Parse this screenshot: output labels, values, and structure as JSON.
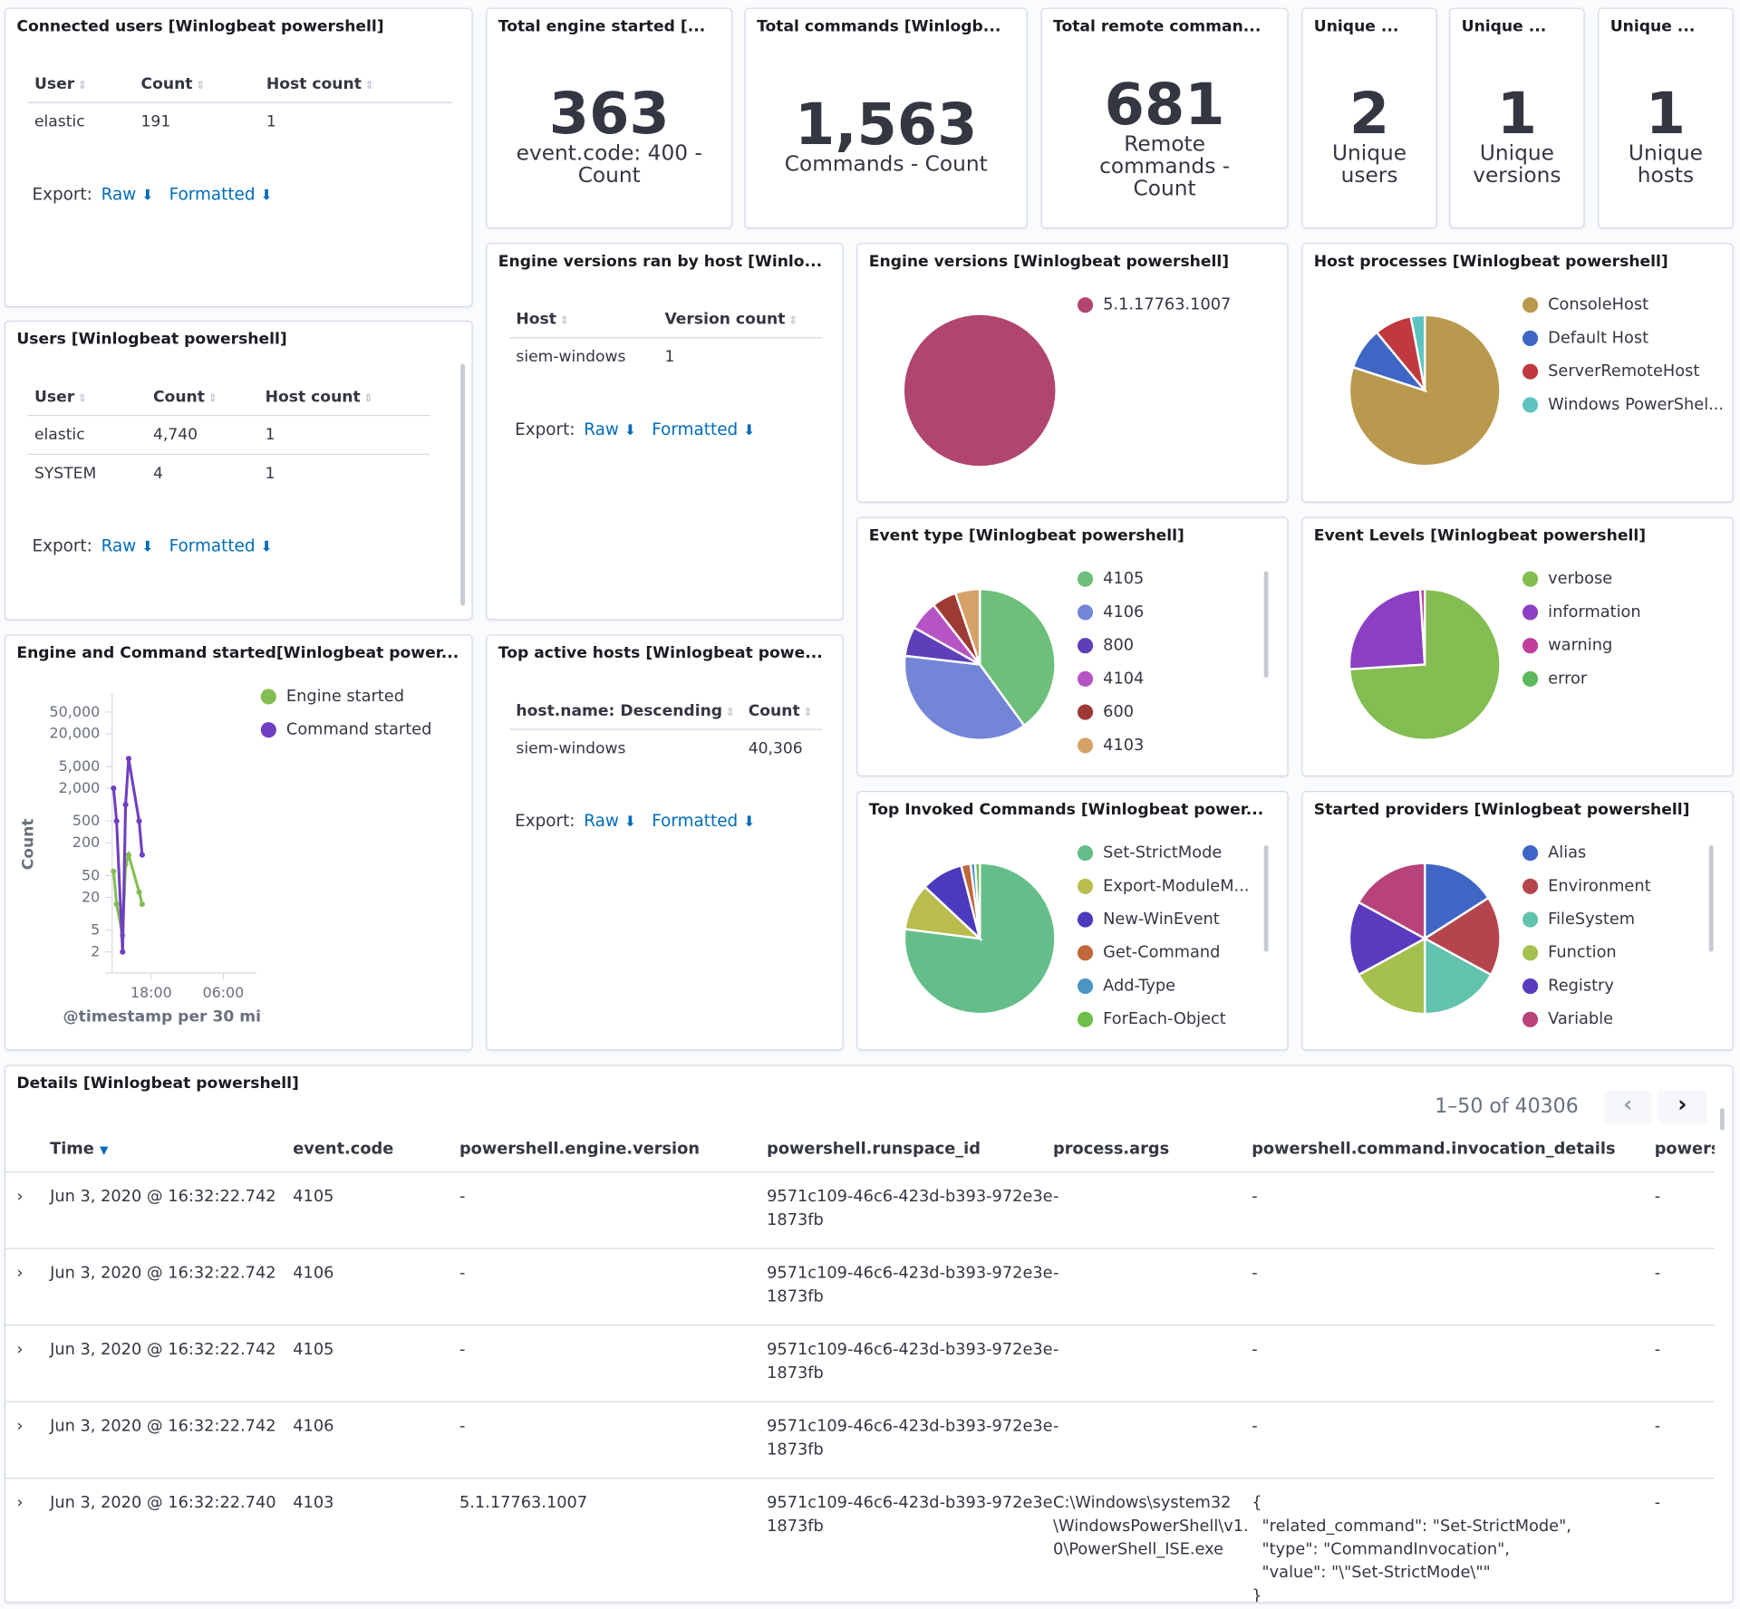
{
  "connected_users": {
    "title": "Connected users [Winlogbeat powershell]",
    "headers": [
      "User",
      "Count",
      "Host count"
    ],
    "rows": [
      [
        "elastic",
        "191",
        "1"
      ]
    ]
  },
  "export": {
    "label": "Export:",
    "raw": "Raw",
    "formatted": "Formatted"
  },
  "metrics": [
    {
      "title": "Total engine started [...",
      "value": "363",
      "label": "event.code: 400 - Count"
    },
    {
      "title": "Total commands [Winlogb...",
      "value": "1,563",
      "label": "Commands - Count"
    },
    {
      "title": "Total remote comman...",
      "value": "681",
      "label": "Remote commands - Count"
    },
    {
      "title": "Unique ...",
      "value": "2",
      "label": "Unique users"
    },
    {
      "title": "Unique ...",
      "value": "1",
      "label": "Unique versions"
    },
    {
      "title": "Unique ...",
      "value": "1",
      "label": "Unique hosts"
    }
  ],
  "users": {
    "title": "Users [Winlogbeat powershell]",
    "headers": [
      "User",
      "Count",
      "Host count"
    ],
    "rows": [
      [
        "elastic",
        "4,740",
        "1"
      ],
      [
        "SYSTEM",
        "4",
        "1"
      ]
    ]
  },
  "engine_by_host": {
    "title": "Engine versions ran by host [Winlo...",
    "headers": [
      "Host",
      "Version count"
    ],
    "rows": [
      [
        "siem-windows",
        "1"
      ]
    ]
  },
  "top_hosts": {
    "title": "Top active hosts [Winlogbeat powe...",
    "headers": [
      "host.name: Descending",
      "Count"
    ],
    "rows": [
      [
        "siem-windows",
        "40,306"
      ]
    ]
  },
  "chart_data": [
    {
      "id": "engine_versions",
      "type": "pie",
      "title": "Engine versions [Winlogbeat powershell]",
      "categories": [
        "5.1.17763.1007"
      ],
      "values": [
        100
      ],
      "colors": [
        "#b0466f"
      ]
    },
    {
      "id": "host_processes",
      "type": "pie",
      "title": "Host processes [Winlogbeat powershell]",
      "categories": [
        "ConsoleHost",
        "Default Host",
        "ServerRemoteHost",
        "Windows PowerShel..."
      ],
      "values": [
        80,
        9,
        8,
        3
      ],
      "colors": [
        "#b9994e",
        "#3f66c5",
        "#c0393f",
        "#5ec3c0"
      ]
    },
    {
      "id": "event_type",
      "type": "pie",
      "title": "Event type [Winlogbeat powershell]",
      "categories": [
        "4105",
        "4106",
        "800",
        "4104",
        "600",
        "4103"
      ],
      "values": [
        38,
        35,
        6,
        6,
        5,
        5
      ],
      "colors": [
        "#6dbf7a",
        "#7385d6",
        "#5f3fb9",
        "#b653c5",
        "#9e3a35",
        "#d6a168"
      ]
    },
    {
      "id": "event_levels",
      "type": "pie",
      "title": "Event Levels [Winlogbeat powershell]",
      "categories": [
        "verbose",
        "information",
        "warning",
        "error"
      ],
      "values": [
        74,
        25,
        1,
        0
      ],
      "colors": [
        "#84bd52",
        "#8c3fc2",
        "#c03f9c",
        "#5cb85c"
      ]
    },
    {
      "id": "top_commands",
      "type": "pie",
      "title": "Top Invoked Commands [Winlogbeat power...",
      "categories": [
        "Set-StrictMode",
        "Export-ModuleM...",
        "New-WinEvent",
        "Get-Command",
        "Add-Type",
        "ForEach-Object"
      ],
      "values": [
        77,
        10,
        9,
        2,
        1,
        1
      ],
      "colors": [
        "#65be8a",
        "#b9bd4e",
        "#4b3abd",
        "#c0673c",
        "#4b95c2",
        "#6dbf4a"
      ]
    },
    {
      "id": "providers",
      "type": "pie",
      "title": "Started providers [Winlogbeat powershell]",
      "categories": [
        "Alias",
        "Environment",
        "FileSystem",
        "Function",
        "Registry",
        "Variable"
      ],
      "values": [
        15,
        16,
        16,
        16,
        15,
        16
      ],
      "colors": [
        "#3f66c5",
        "#b5454d",
        "#61c2ae",
        "#a6c04f",
        "#5a3bc0",
        "#b8427a"
      ]
    },
    {
      "id": "engine_command",
      "type": "line",
      "title": "Engine and Command started[Winlogbeat power...",
      "xlabel": "@timestamp per 30 mi",
      "ylabel": "Count",
      "yscale": "log",
      "yticks": [
        "2",
        "5",
        "20",
        "50",
        "200",
        "500",
        "2,000",
        "5,000",
        "20,000",
        "50,000"
      ],
      "xticks": [
        "18:00",
        "06:00"
      ],
      "xlim": [
        "2020-06-03T11:30",
        "2020-06-04T11:30"
      ],
      "legend": "top-right",
      "series": [
        {
          "name": "Engine started",
          "color": "#84bd52",
          "x": [
            "2020-06-03T11:45",
            "2020-06-03T12:15",
            "2020-06-03T13:15",
            "2020-06-03T13:45",
            "2020-06-03T14:15",
            "2020-06-03T16:00",
            "2020-06-03T16:30"
          ],
          "y": [
            60,
            15,
            4,
            80,
            120,
            25,
            15
          ]
        },
        {
          "name": "Command started",
          "color": "#6f3fc2",
          "x": [
            "2020-06-03T11:45",
            "2020-06-03T12:15",
            "2020-06-03T13:15",
            "2020-06-03T13:45",
            "2020-06-03T14:15",
            "2020-06-03T16:00",
            "2020-06-03T16:30"
          ],
          "y": [
            2000,
            500,
            2,
            1000,
            7000,
            500,
            120
          ]
        }
      ]
    }
  ],
  "details": {
    "title": "Details [Winlogbeat powershell]",
    "pagination": "1–50 of 40306",
    "headers": [
      "Time",
      "event.code",
      "powershell.engine.version",
      "powershell.runspace_id",
      "process.args",
      "powershell.command.invocation_details",
      "powers"
    ],
    "rows": [
      [
        "Jun 3, 2020 @ 16:32:22.742",
        "4105",
        "-",
        "9571c109-46c6-423d-b393-972e3e1873fb",
        "-",
        "-",
        "-"
      ],
      [
        "Jun 3, 2020 @ 16:32:22.742",
        "4106",
        "-",
        "9571c109-46c6-423d-b393-972e3e1873fb",
        "-",
        "-",
        "-"
      ],
      [
        "Jun 3, 2020 @ 16:32:22.742",
        "4105",
        "-",
        "9571c109-46c6-423d-b393-972e3e1873fb",
        "-",
        "-",
        "-"
      ],
      [
        "Jun 3, 2020 @ 16:32:22.742",
        "4106",
        "-",
        "9571c109-46c6-423d-b393-972e3e1873fb",
        "-",
        "-",
        "-"
      ],
      [
        "Jun 3, 2020 @ 16:32:22.740",
        "4103",
        "5.1.17763.1007",
        "9571c109-46c6-423d-b393-972e3e1873fb",
        "C:\\Windows\\system32\\WindowsPowerShell\\v1.0\\PowerShell_ISE.exe",
        "{\n  \"related_command\": \"Set-StrictMode\",\n  \"type\": \"CommandInvocation\",\n  \"value\": \"\\\"Set-StrictMode\\\"\"\n}",
        "-"
      ]
    ]
  }
}
